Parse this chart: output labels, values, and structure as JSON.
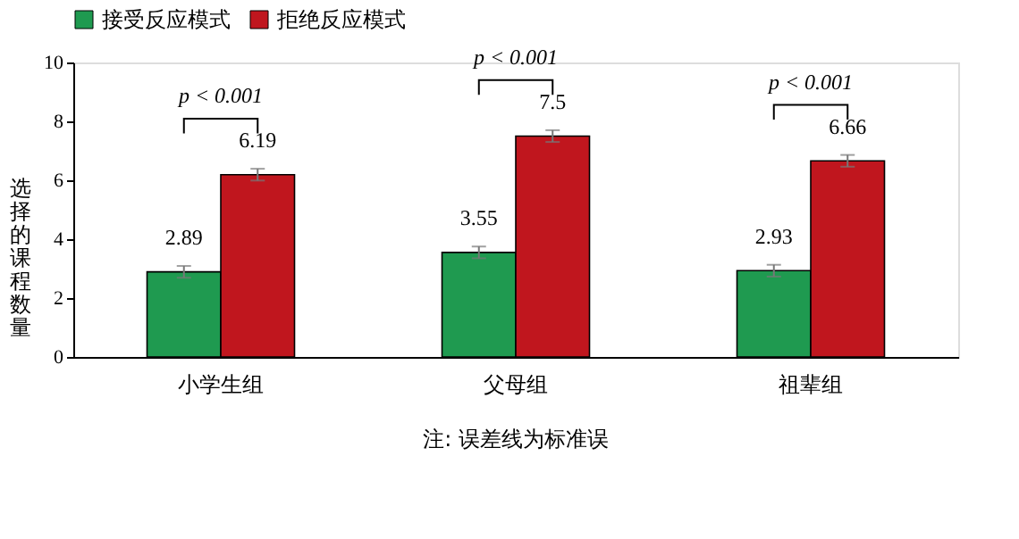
{
  "chart_data": {
    "type": "bar",
    "ylabel": "选择的课程数量",
    "categories": [
      "小学生组",
      "父母组",
      "祖辈组"
    ],
    "series": [
      {
        "name": "接受反应模式",
        "color": "#1f9a50",
        "values": [
          2.89,
          3.55,
          2.93
        ],
        "errors": [
          0.2,
          0.2,
          0.2
        ]
      },
      {
        "name": "拒绝反应模式",
        "color": "#c0161e",
        "values": [
          6.19,
          7.5,
          6.66
        ],
        "errors": [
          0.2,
          0.2,
          0.2
        ]
      }
    ],
    "ylim": [
      0,
      10
    ],
    "yticks": [
      0,
      2,
      4,
      6,
      8,
      10
    ],
    "data_labels": true,
    "grid": false,
    "legend": "top",
    "annotations": [
      "p < 0.001",
      "p < 0.001",
      "p < 0.001",
      "注: 误差线为标准误"
    ]
  }
}
